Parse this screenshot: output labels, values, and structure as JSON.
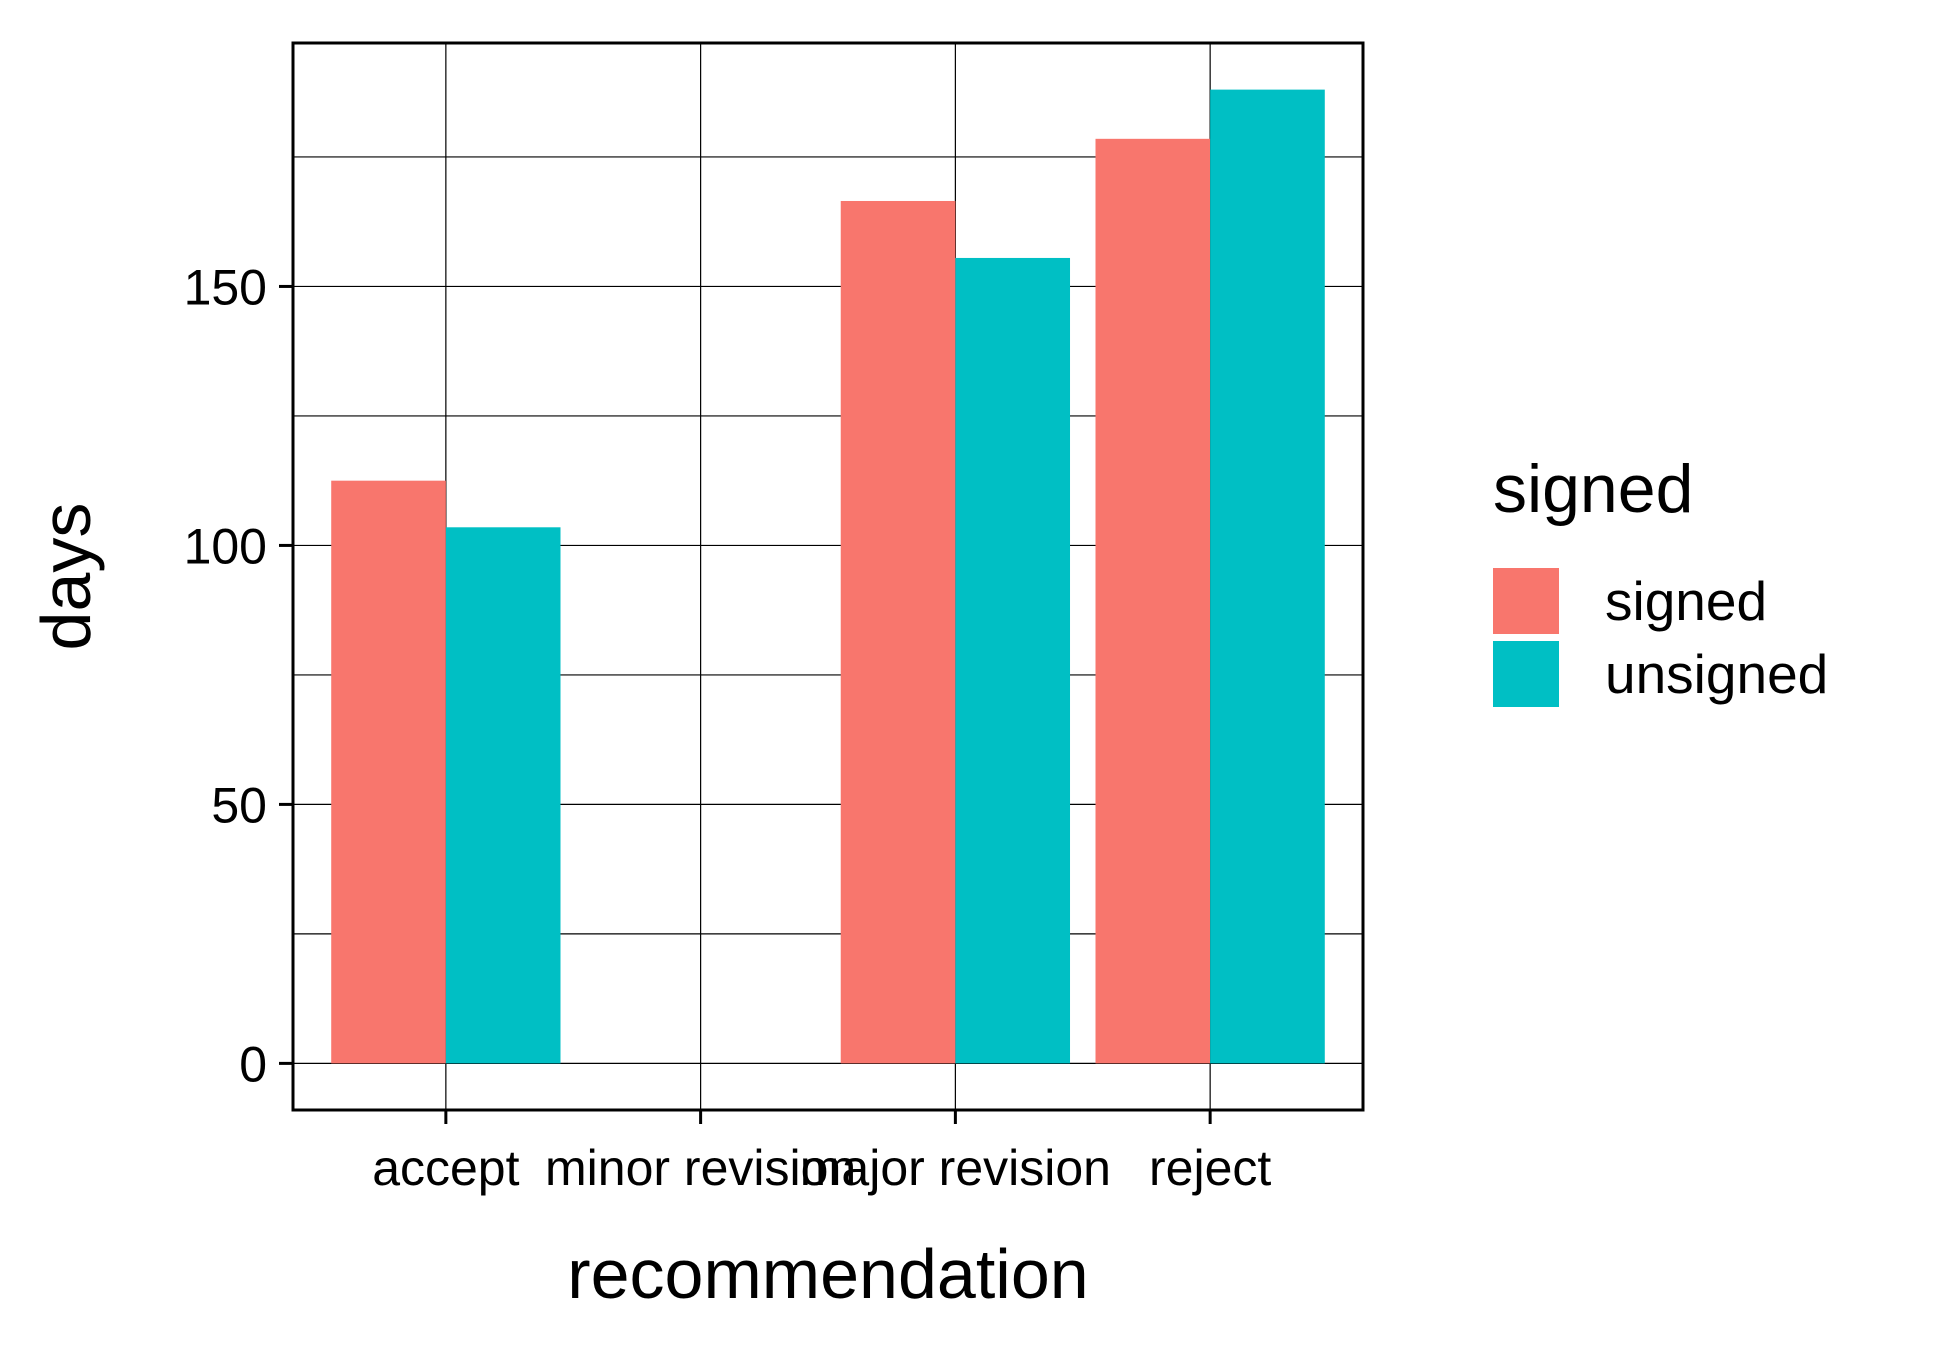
{
  "chart_data": {
    "type": "bar",
    "title": "",
    "xlabel": "recommendation",
    "ylabel": "days",
    "categories": [
      "accept",
      "minor revision",
      "major revision",
      "reject"
    ],
    "series": [
      {
        "name": "signed",
        "color": "#F8766D",
        "values": [
          112.5,
          0,
          166.5,
          178.5
        ]
      },
      {
        "name": "unsigned",
        "color": "#00BFC4",
        "values": [
          103.5,
          0,
          155.5,
          188
        ]
      }
    ],
    "y_ticks": [
      0,
      50,
      100,
      150
    ],
    "ylim": [
      -9,
      197
    ],
    "grid": true,
    "legend": {
      "title": "signed",
      "placement": "right"
    }
  }
}
